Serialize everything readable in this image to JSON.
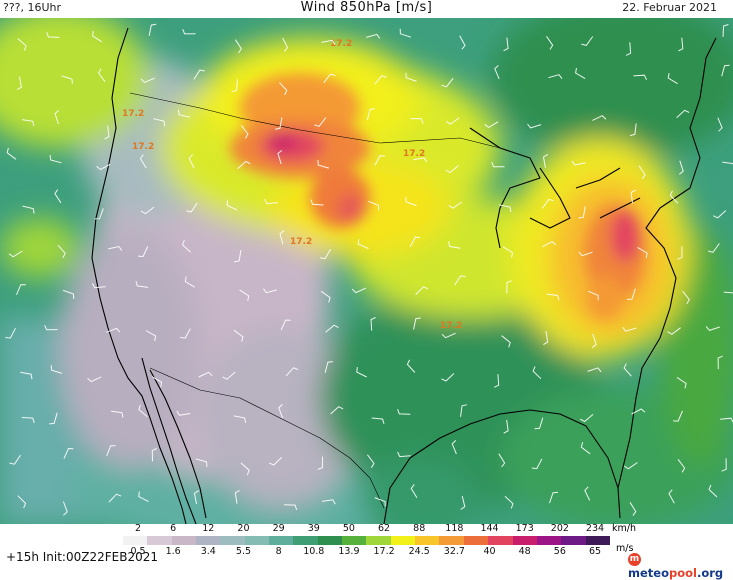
{
  "header": {
    "left": "???, 16Uhr",
    "title": "Wind 850hPa [m/s]",
    "date": "22. Februar 2021"
  },
  "map": {
    "contour_label": "17.2",
    "label_color": "#e07722",
    "boundary_color": "#000000"
  },
  "legend": {
    "kmh_ticks": [
      "2",
      "6",
      "12",
      "20",
      "29",
      "39",
      "50",
      "62",
      "88",
      "118",
      "144",
      "173",
      "202",
      "234"
    ],
    "ms_ticks": [
      "0.5",
      "1.6",
      "3.4",
      "5.5",
      "8",
      "10.8",
      "13.9",
      "17.2",
      "24.5",
      "32.7",
      "40",
      "48",
      "56",
      "65"
    ],
    "unit_kmh": "km/h",
    "unit_ms": "m/s",
    "colors": [
      "#f2f2f2",
      "#d8c9d6",
      "#c9b6c6",
      "#aeb4c4",
      "#9dbcbf",
      "#84bcb3",
      "#5fae9b",
      "#3f9e74",
      "#2f8f4f",
      "#55b13b",
      "#9fd63a",
      "#f2f21a",
      "#f8c52a",
      "#f49a36",
      "#ec6e3a",
      "#e24460",
      "#c81e6c",
      "#9c1486",
      "#6e1a86",
      "#3f1a58"
    ]
  },
  "footer": {
    "init": "+15h Init:00Z22FEB2021",
    "logo_prefix": "meteo",
    "logo_accent": "pool",
    "logo_suffix": ".org"
  }
}
